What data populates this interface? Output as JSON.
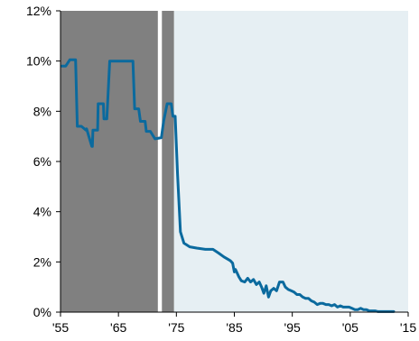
{
  "chart_data": {
    "type": "line",
    "title": "",
    "xlabel": "",
    "ylabel": "",
    "xlim": [
      1955,
      2015
    ],
    "ylim": [
      0,
      12
    ],
    "x_ticks": [
      1955,
      1965,
      1975,
      1985,
      1995,
      2005,
      2015
    ],
    "x_tick_labels": [
      "'55",
      "'65",
      "'75",
      "'85",
      "'95",
      "'05",
      "'15"
    ],
    "y_ticks": [
      0,
      2,
      4,
      6,
      8,
      10,
      12
    ],
    "y_tick_labels": [
      "0%",
      "2%",
      "4%",
      "6%",
      "8%",
      "10%",
      "12%"
    ],
    "grid": false,
    "legend": "none",
    "shaded_regions": [
      {
        "x_start": 1955,
        "x_end": 1971.8,
        "color": "#808080"
      },
      {
        "x_start": 1972.5,
        "x_end": 1974.6,
        "color": "#808080"
      },
      {
        "x_start": 1974.6,
        "x_end": 2015,
        "color": "#e6eff3"
      }
    ],
    "series": [
      {
        "color": "#0b6a9e",
        "x": [
          1955.2,
          1955.9,
          1956.6,
          1957.6,
          1957.9,
          1958.6,
          1959.4,
          1959.5,
          1960.4,
          1960.5,
          1960.6,
          1961.4,
          1961.5,
          1962.4,
          1962.5,
          1963.0,
          1963.5,
          1963.9,
          1964.6,
          1965.5,
          1966.5,
          1967.5,
          1967.8,
          1968.5,
          1968.8,
          1969.6,
          1969.8,
          1970.5,
          1971.3,
          1972.4,
          1972.8,
          1973.4,
          1973.6,
          1974.1,
          1974.4,
          1974.8,
          1975.2,
          1975.7,
          1976.3,
          1977.3,
          1978.5,
          1980.0,
          1981.3,
          1982.3,
          1983.2,
          1984.3,
          1984.7,
          1985.0,
          1985.2,
          1985.8,
          1986.2,
          1986.8,
          1987.3,
          1987.8,
          1988.3,
          1988.8,
          1989.3,
          1989.7,
          1990.1,
          1990.5,
          1990.9,
          1991.3,
          1991.8,
          1992.3,
          1992.8,
          1993.4,
          1993.8,
          1994.3,
          1994.8,
          1995.3,
          1995.8,
          1996.3,
          1996.8,
          1997.3,
          1997.8,
          1998.3,
          1998.8,
          1999.3,
          1999.8,
          2000.3,
          2000.8,
          2001.3,
          2001.8,
          2002.3,
          2002.8,
          2003.3,
          2003.8,
          2004.3,
          2004.8,
          2005.3,
          2005.8,
          2006.3,
          2006.8,
          2007.3,
          2007.8,
          2008.3,
          2008.8,
          2009.3,
          2009.8,
          2010.5,
          2011.5,
          2012.5
        ],
        "y": [
          9.8,
          9.8,
          10.05,
          10.05,
          7.4,
          7.4,
          7.25,
          7.3,
          6.6,
          6.6,
          7.25,
          7.25,
          8.3,
          8.3,
          7.7,
          7.7,
          10.0,
          10.0,
          10.0,
          10.0,
          10.0,
          10.0,
          8.1,
          8.1,
          7.6,
          7.6,
          7.2,
          7.2,
          6.9,
          6.95,
          7.6,
          8.3,
          8.3,
          8.3,
          7.8,
          7.8,
          5.5,
          3.2,
          2.75,
          2.6,
          2.55,
          2.5,
          2.5,
          2.35,
          2.2,
          2.05,
          1.95,
          1.6,
          1.7,
          1.4,
          1.25,
          1.2,
          1.35,
          1.2,
          1.3,
          1.1,
          1.2,
          1.0,
          0.75,
          1.05,
          0.6,
          0.85,
          0.95,
          0.85,
          1.2,
          1.2,
          1.0,
          0.9,
          0.85,
          0.8,
          0.7,
          0.7,
          0.6,
          0.55,
          0.55,
          0.45,
          0.4,
          0.3,
          0.35,
          0.35,
          0.3,
          0.3,
          0.25,
          0.3,
          0.2,
          0.25,
          0.2,
          0.2,
          0.2,
          0.15,
          0.1,
          0.1,
          0.15,
          0.1,
          0.1,
          0.05,
          0.05,
          0.05,
          0.02,
          0.02,
          0.02,
          0.02
        ]
      }
    ]
  }
}
